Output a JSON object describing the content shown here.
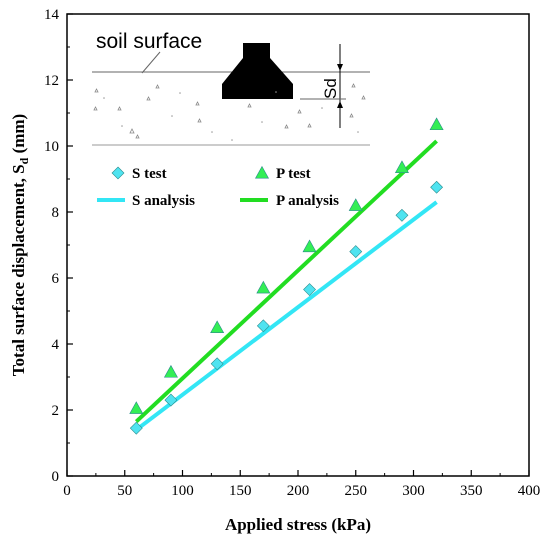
{
  "chart_data": {
    "type": "scatter",
    "xlabel": "Applied stress (kPa)",
    "ylabel": "Total surface displacement, S",
    "ylabel_sub": "d",
    "ylabel_unit": " (mm)",
    "xlim": [
      0,
      400
    ],
    "ylim": [
      0,
      14
    ],
    "xticks": [
      0,
      50,
      100,
      150,
      200,
      250,
      300,
      350,
      400
    ],
    "yticks": [
      0,
      2,
      4,
      6,
      8,
      10,
      12,
      14
    ],
    "grid": false,
    "legend_position": "upper-left",
    "series": [
      {
        "name": "S test",
        "kind": "markers",
        "marker": "diamond",
        "color": "#4fe3f0",
        "x": [
          60,
          90,
          130,
          170,
          210,
          250,
          290,
          320
        ],
        "y": [
          1.45,
          2.3,
          3.4,
          4.55,
          5.65,
          6.8,
          7.9,
          8.75
        ]
      },
      {
        "name": "P test",
        "kind": "markers",
        "marker": "triangle",
        "color": "#33ee55",
        "x": [
          60,
          90,
          130,
          170,
          210,
          250,
          290,
          320
        ],
        "y": [
          2.05,
          3.15,
          4.5,
          5.7,
          6.95,
          8.2,
          9.35,
          10.65
        ]
      },
      {
        "name": "S analysis",
        "kind": "line",
        "color": "#33e6f5",
        "x": [
          60,
          320
        ],
        "y": [
          1.4,
          8.3
        ]
      },
      {
        "name": "P analysis",
        "kind": "line",
        "color": "#22dd22",
        "x": [
          60,
          320
        ],
        "y": [
          1.65,
          10.15
        ]
      }
    ],
    "inset": {
      "label": "soil surface",
      "dimension_label": "Sd"
    }
  }
}
